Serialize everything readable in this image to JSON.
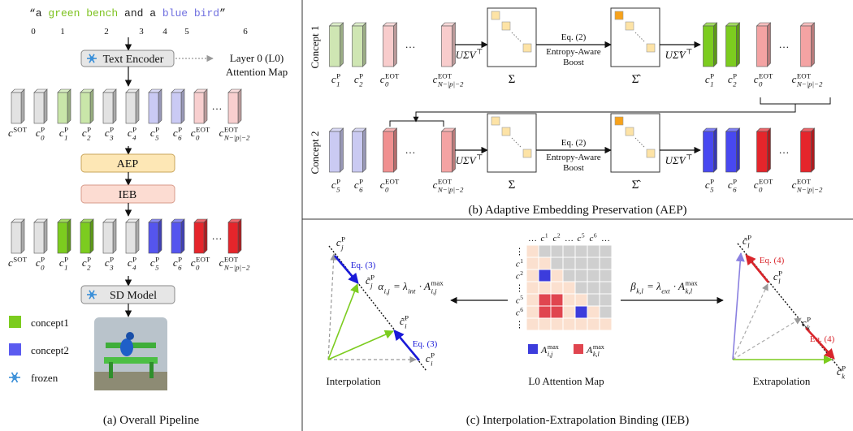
{
  "panel_a": {
    "prompt": [
      {
        "text": "“a ",
        "color": "#222222"
      },
      {
        "text": "green bench",
        "color": "#7dc21e"
      },
      {
        "text": " and a ",
        "color": "#222222"
      },
      {
        "text": "blue bird",
        "color": "#7070e0"
      },
      {
        "text": "”",
        "color": "#222222"
      }
    ],
    "token_indices": [
      "0",
      "1",
      "2",
      "3",
      "4",
      "5",
      "6"
    ],
    "text_encoder": "Text Encoder",
    "attention_note": [
      "Layer 0 (L0)",
      "Attention Map"
    ],
    "tokens_in": {
      "labels": [
        {
          "base": "c",
          "sup": "SOT"
        },
        {
          "base": "c",
          "sub": "0",
          "sup": "P"
        },
        {
          "base": "c",
          "sub": "1",
          "sup": "P"
        },
        {
          "base": "c",
          "sub": "2",
          "sup": "P"
        },
        {
          "base": "c",
          "sub": "3",
          "sup": "P"
        },
        {
          "base": "c",
          "sub": "4",
          "sup": "P"
        },
        {
          "base": "c",
          "sub": "5",
          "sup": "P"
        },
        {
          "base": "c",
          "sub": "6",
          "sup": "P"
        },
        {
          "base": "c",
          "sub": "0",
          "sup": "EOT"
        },
        "…",
        {
          "base": "c",
          "sub": "N−|p|−2",
          "sup": "EOT"
        }
      ],
      "colors": [
        "#e2e2e2",
        "#e2e2e2",
        "#c9e6a9",
        "#c9e6a9",
        "#e2e2e2",
        "#e2e2e2",
        "#cacaf4",
        "#cacaf4",
        "#f8cfcf",
        null,
        "#f8cfcf"
      ]
    },
    "aep": "AEP",
    "ieb": "IEB",
    "tokens_out": {
      "labels": [
        {
          "base": "c",
          "sup": "SOT"
        },
        {
          "base": "c",
          "sub": "0",
          "sup": "P"
        },
        {
          "base": "c",
          "sub": "1",
          "sup": "P"
        },
        {
          "base": "c",
          "sub": "2",
          "sup": "P"
        },
        {
          "base": "c",
          "sub": "3",
          "sup": "P"
        },
        {
          "base": "c",
          "sub": "4",
          "sup": "P"
        },
        {
          "base": "c",
          "sub": "5",
          "sup": "P"
        },
        {
          "base": "c",
          "sub": "6",
          "sup": "P"
        },
        {
          "base": "c",
          "sub": "0",
          "sup": "EOT"
        },
        "…",
        {
          "base": "c",
          "sub": "N−|p|−2",
          "sup": "EOT"
        }
      ],
      "colors": [
        "#e2e2e2",
        "#e2e2e2",
        "#7ccc1f",
        "#7ccc1f",
        "#e2e2e2",
        "#e2e2e2",
        "#5555ee",
        "#5555ee",
        "#e5252b",
        null,
        "#e5252b"
      ]
    },
    "sd_model": "SD Model",
    "legend": [
      {
        "label": "concept1",
        "color": "#7ccc1f"
      },
      {
        "label": "concept2",
        "color": "#5b5bf0"
      },
      {
        "label": "frozen"
      }
    ],
    "caption": "(a) Overall Pipeline"
  },
  "panel_b": {
    "rows": [
      {
        "name": "Concept 1",
        "inputs": {
          "labels": [
            {
              "base": "c",
              "sub": "1",
              "sup": "P"
            },
            {
              "base": "c",
              "sub": "2",
              "sup": "P"
            },
            {
              "base": "c",
              "sub": "0",
              "sup": "EOT"
            },
            "…",
            {
              "base": "c",
              "sub": "N−|p|−2",
              "sup": "EOT"
            }
          ],
          "colors": [
            "#cfe6b3",
            "#cfe6b3",
            "#f8cccc",
            null,
            "#f8cccc"
          ]
        },
        "svd": {
          "base": "UΣV",
          "sup": "⊤"
        },
        "sigma": "Σ",
        "eq": "Eq. (2)",
        "boost": [
          "Entropy-Aware",
          "Boost"
        ],
        "sigma_hat": "Σ̂",
        "svd_hat": {
          "base": "UΣ̂V",
          "sup": "⊤"
        },
        "outputs": {
          "labels": [
            {
              "base": "c",
              "sub": "1",
              "sup": "P"
            },
            {
              "base": "c",
              "sub": "2",
              "sup": "P"
            },
            {
              "base": "c",
              "sub": "0",
              "sup": "EOT"
            },
            "…",
            {
              "base": "c",
              "sub": "N−|p|−2",
              "sup": "EOT"
            }
          ],
          "colors": [
            "#7ccc1f",
            "#7ccc1f",
            "#f4a3a3",
            null,
            "#f4a3a3"
          ]
        }
      },
      {
        "name": "Concept 2",
        "inputs": {
          "labels": [
            {
              "base": "c",
              "sub": "5",
              "sup": "P"
            },
            {
              "base": "c",
              "sub": "6",
              "sup": "P"
            },
            {
              "base": "c",
              "sub": "0",
              "sup": "EOT"
            },
            "…",
            {
              "base": "c",
              "sub": "N−|p|−2",
              "sup": "EOT"
            }
          ],
          "colors": [
            "#cacaf2",
            "#cacaf2",
            "#f09090",
            null,
            "#f4a3a3"
          ]
        },
        "svd": {
          "base": "UΣV",
          "sup": "⊤"
        },
        "sigma": "Σ",
        "eq": "Eq. (2)",
        "boost": [
          "Entropy-Aware",
          "Boost"
        ],
        "sigma_hat": "Σ̂",
        "svd_hat": {
          "base": "UΣ̂V",
          "sup": "⊤"
        },
        "outputs": {
          "labels": [
            {
              "base": "c",
              "sub": "5",
              "sup": "P"
            },
            {
              "base": "c",
              "sub": "6",
              "sup": "P"
            },
            {
              "base": "c",
              "sub": "0",
              "sup": "EOT"
            },
            "…",
            {
              "base": "c",
              "sub": "N−|p|−2",
              "sup": "EOT"
            }
          ],
          "colors": [
            "#4848f0",
            "#4848f0",
            "#e5252b",
            null,
            "#e5252b"
          ]
        }
      }
    ],
    "caption": "(b) Adaptive Embedding Preservation (AEP)"
  },
  "panel_c": {
    "interpolation": {
      "c_j": {
        "base": "c",
        "sub": "j",
        "sup": "P"
      },
      "c_j_tilde": {
        "base": "c̃",
        "sub": "j",
        "sup": "P"
      },
      "c_i_tilde": {
        "base": "c̃",
        "sub": "i",
        "sup": "P"
      },
      "c_i": {
        "base": "c",
        "sub": "i",
        "sup": "P"
      },
      "eq_top": "Eq. (3)",
      "eq_bottom": "Eq. (3)",
      "title": "Interpolation"
    },
    "alpha_formula": [
      {
        "base": "α",
        "sub": "i,j"
      },
      {
        "base": " = λ",
        "sub": "int"
      },
      {
        "base": " · A",
        "sub": "i,j",
        "sup": "max"
      }
    ],
    "attention_map": {
      "col_labels": [
        "…",
        {
          "base": "c",
          "sup": "1"
        },
        {
          "base": "c",
          "sup": "2"
        },
        "…",
        {
          "base": "c",
          "sup": "5"
        },
        {
          "base": "c",
          "sup": "6"
        },
        "…"
      ],
      "row_labels": [
        "⋮",
        {
          "base": "c",
          "sup": "1"
        },
        {
          "base": "c",
          "sup": "2"
        },
        "⋮",
        {
          "base": "c",
          "sup": "5"
        },
        {
          "base": "c",
          "sup": "6"
        },
        "⋮"
      ],
      "legend": [
        {
          "label": {
            "base": "A",
            "sub": "i,j",
            "sup": "max"
          },
          "color": "#3c3cdc"
        },
        {
          "label": {
            "base": "A",
            "sub": "k,l",
            "sup": "max"
          },
          "color": "#e0454f"
        }
      ],
      "title": "L0 Attention Map"
    },
    "beta_formula": [
      {
        "base": "β",
        "sub": "k,l"
      },
      {
        "base": " = λ",
        "sub": "ext"
      },
      {
        "base": " · A",
        "sub": "k,l",
        "sup": "max"
      }
    ],
    "extrapolation": {
      "c_l_tilde": {
        "base": "c̃",
        "sub": "l",
        "sup": "P"
      },
      "c_l": {
        "base": "c",
        "sub": "l",
        "sup": "P"
      },
      "c_k": {
        "base": "c",
        "sub": "k",
        "sup": "P"
      },
      "c_k_tilde": {
        "base": "c̃",
        "sub": "k",
        "sup": "P"
      },
      "eq_top": "Eq. (4)",
      "eq_bottom": "Eq. (4)",
      "title": "Extrapolation"
    },
    "caption": "(c) Interpolation-Extrapolation Binding (IEB)"
  }
}
